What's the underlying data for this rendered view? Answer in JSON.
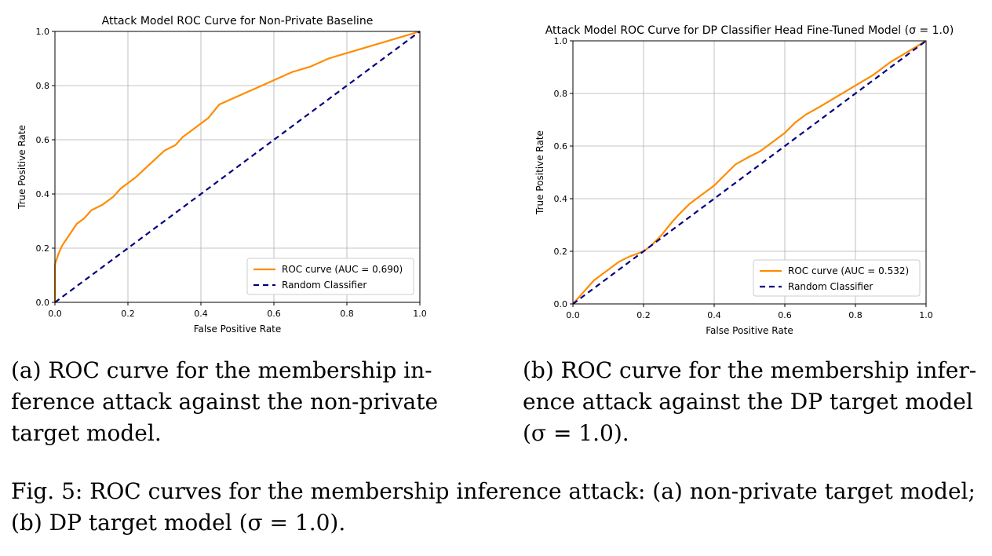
{
  "chart_data": [
    {
      "type": "line",
      "title": "Attack Model ROC Curve for Non-Private Baseline",
      "xlabel": "False Positive Rate",
      "ylabel": "True Positive Rate",
      "xlim": [
        0,
        1
      ],
      "ylim": [
        0,
        1
      ],
      "xticks": [
        "0.0",
        "0.2",
        "0.4",
        "0.6",
        "0.8",
        "1.0"
      ],
      "yticks": [
        "0.0",
        "0.2",
        "0.4",
        "0.6",
        "0.8",
        "1.0"
      ],
      "grid": true,
      "legend_position": "lower-right",
      "series": [
        {
          "name": "ROC curve (AUC = 0.690)",
          "color": "#ff8c00",
          "style": "solid",
          "points": [
            [
              0,
              0
            ],
            [
              0,
              0.14
            ],
            [
              0.01,
              0.18
            ],
            [
              0.02,
              0.21
            ],
            [
              0.04,
              0.25
            ],
            [
              0.06,
              0.29
            ],
            [
              0.08,
              0.31
            ],
            [
              0.1,
              0.34
            ],
            [
              0.13,
              0.36
            ],
            [
              0.16,
              0.39
            ],
            [
              0.18,
              0.42
            ],
            [
              0.22,
              0.46
            ],
            [
              0.26,
              0.51
            ],
            [
              0.3,
              0.56
            ],
            [
              0.33,
              0.58
            ],
            [
              0.35,
              0.61
            ],
            [
              0.38,
              0.64
            ],
            [
              0.42,
              0.68
            ],
            [
              0.45,
              0.73
            ],
            [
              0.5,
              0.76
            ],
            [
              0.55,
              0.79
            ],
            [
              0.6,
              0.82
            ],
            [
              0.65,
              0.85
            ],
            [
              0.7,
              0.87
            ],
            [
              0.75,
              0.9
            ],
            [
              0.8,
              0.92
            ],
            [
              0.85,
              0.94
            ],
            [
              0.9,
              0.96
            ],
            [
              0.95,
              0.98
            ],
            [
              1,
              1
            ]
          ]
        },
        {
          "name": "Random Classifier",
          "color": "#000080",
          "style": "dashed",
          "points": [
            [
              0,
              0
            ],
            [
              1,
              1
            ]
          ]
        }
      ]
    },
    {
      "type": "line",
      "title": "Attack Model ROC Curve for DP Classifier Head Fine-Tuned Model (σ = 1.0)",
      "xlabel": "False Positive Rate",
      "ylabel": "True Positive Rate",
      "xlim": [
        0,
        1
      ],
      "ylim": [
        0,
        1
      ],
      "xticks": [
        "0.0",
        "0.2",
        "0.4",
        "0.6",
        "0.8",
        "1.0"
      ],
      "yticks": [
        "0.0",
        "0.2",
        "0.4",
        "0.6",
        "0.8",
        "1.0"
      ],
      "grid": true,
      "legend_position": "lower-right",
      "series": [
        {
          "name": "ROC curve (AUC = 0.532)",
          "color": "#ff8c00",
          "style": "solid",
          "points": [
            [
              0,
              0
            ],
            [
              0.02,
              0.03
            ],
            [
              0.04,
              0.06
            ],
            [
              0.06,
              0.09
            ],
            [
              0.08,
              0.11
            ],
            [
              0.1,
              0.13
            ],
            [
              0.13,
              0.16
            ],
            [
              0.16,
              0.18
            ],
            [
              0.2,
              0.2
            ],
            [
              0.22,
              0.22
            ],
            [
              0.25,
              0.26
            ],
            [
              0.28,
              0.31
            ],
            [
              0.3,
              0.34
            ],
            [
              0.33,
              0.38
            ],
            [
              0.36,
              0.41
            ],
            [
              0.4,
              0.45
            ],
            [
              0.43,
              0.49
            ],
            [
              0.46,
              0.53
            ],
            [
              0.5,
              0.56
            ],
            [
              0.53,
              0.58
            ],
            [
              0.56,
              0.61
            ],
            [
              0.6,
              0.65
            ],
            [
              0.63,
              0.69
            ],
            [
              0.66,
              0.72
            ],
            [
              0.7,
              0.75
            ],
            [
              0.75,
              0.79
            ],
            [
              0.8,
              0.83
            ],
            [
              0.85,
              0.87
            ],
            [
              0.9,
              0.92
            ],
            [
              0.95,
              0.96
            ],
            [
              1,
              1
            ]
          ]
        },
        {
          "name": "Random Classifier",
          "color": "#000080",
          "style": "dashed",
          "points": [
            [
              0,
              0
            ],
            [
              1,
              1
            ]
          ]
        }
      ]
    }
  ],
  "captions": {
    "a": "(a) ROC curve for the membership in-ference attack against the non-private target model.",
    "b": "(b) ROC curve for the membership infer-ence attack against the DP target model (σ = 1.0).",
    "figure": "Fig. 5: ROC curves for the membership inference attack: (a) non-private target model; (b) DP target model (σ = 1.0)."
  }
}
